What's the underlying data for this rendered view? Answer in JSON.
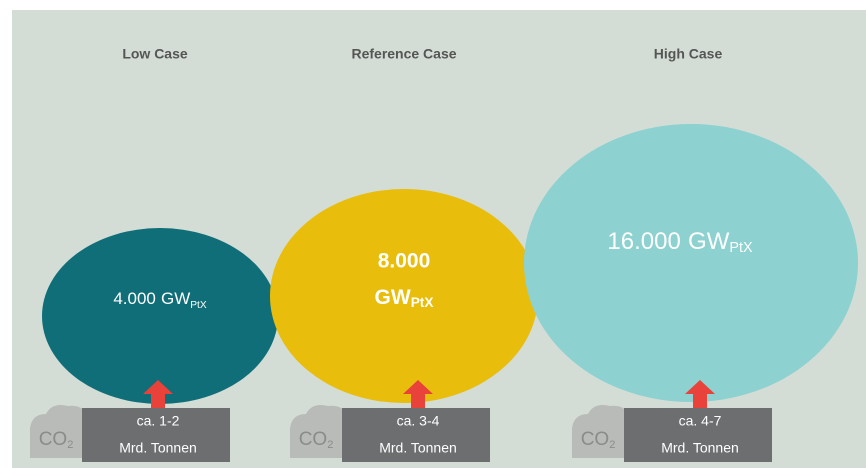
{
  "cases": [
    {
      "title": "Low Case",
      "value": "4.000",
      "unit": "GW",
      "unit_sub": "PtX",
      "range": "ca. 1-2",
      "range_unit": "Mrd. Tonnen",
      "icon": "CO",
      "icon_sub": "2"
    },
    {
      "title": "Reference Case",
      "value": "8.000",
      "unit": "GW",
      "unit_sub": "PtX",
      "range": "ca. 3-4",
      "range_unit": "Mrd. Tonnen",
      "icon": "CO",
      "icon_sub": "2"
    },
    {
      "title": "High Case",
      "value": "16.000",
      "unit": "GW",
      "unit_sub": "PtX",
      "range": "ca. 4-7",
      "range_unit": "Mrd. Tonnen",
      "icon": "CO",
      "icon_sub": "2"
    }
  ]
}
